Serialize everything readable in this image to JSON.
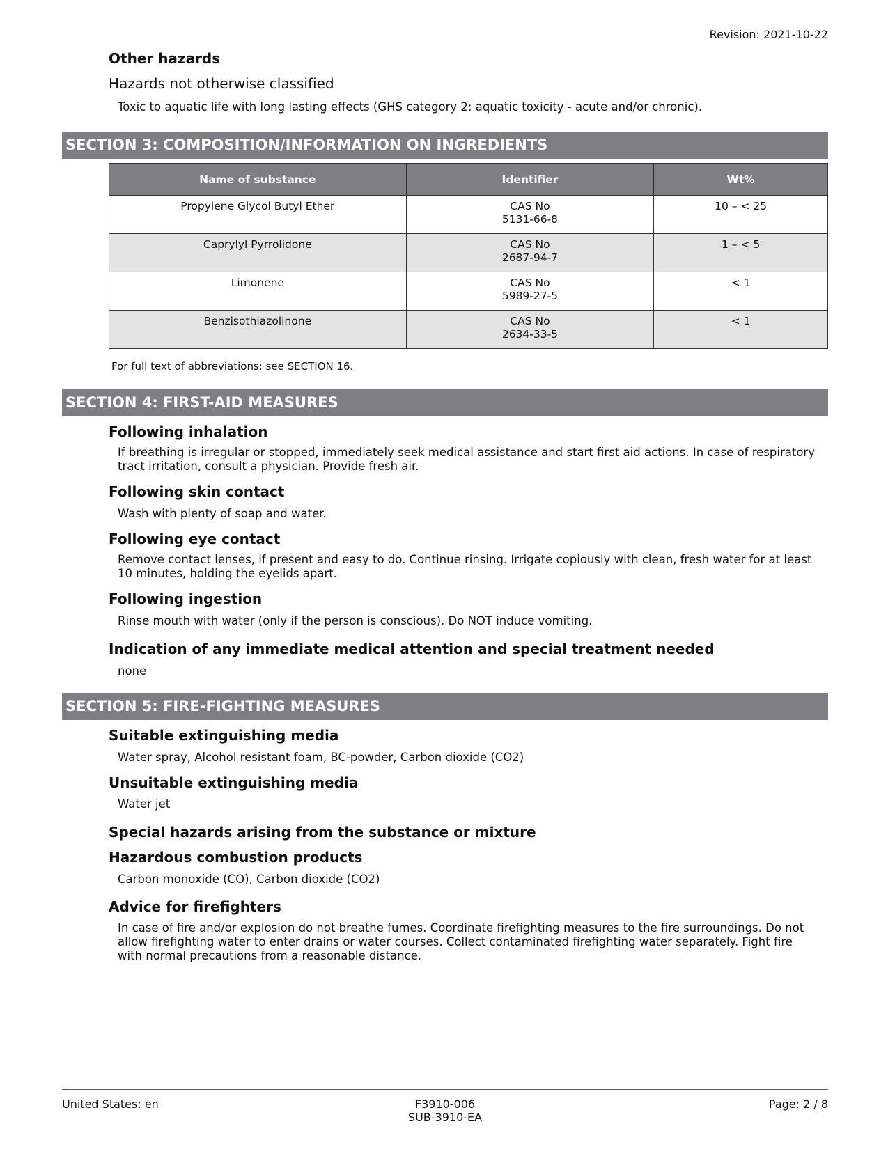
{
  "header": {
    "revision": "Revision: 2021-10-22"
  },
  "other_hazards": {
    "title": "Other hazards",
    "subtitle": "Hazards not otherwise classified",
    "text": "Toxic to aquatic life with long lasting effects (GHS category 2: aquatic toxicity - acute and/or chronic)."
  },
  "section3": {
    "title": "SECTION 3: COMPOSITION/INFORMATION ON INGREDIENTS",
    "columns": [
      "Name of substance",
      "Identifier",
      "Wt%"
    ],
    "rows": [
      {
        "name": "Propylene Glycol Butyl Ether",
        "id_type": "CAS No",
        "id": "5131-66-8",
        "wt": "10 – < 25"
      },
      {
        "name": "Caprylyl Pyrrolidone",
        "id_type": "CAS No",
        "id": "2687-94-7",
        "wt": "1 – < 5"
      },
      {
        "name": "Limonene",
        "id_type": "CAS No",
        "id": "5989-27-5",
        "wt": "< 1"
      },
      {
        "name": "Benzisothiazolinone",
        "id_type": "CAS No",
        "id": "2634-33-5",
        "wt": "< 1"
      }
    ],
    "footnote": "For full text of abbreviations: see SECTION 16."
  },
  "section4": {
    "title": "SECTION 4: FIRST-AID MEASURES",
    "items": [
      {
        "heading": "Following inhalation",
        "lines": [
          "If breathing is irregular or stopped, immediately seek medical assistance and start first aid actions.  In case of respiratory",
          "tract irritation, consult a physician.  Provide fresh air."
        ]
      },
      {
        "heading": "Following skin contact",
        "lines": [
          "Wash with plenty of soap and water."
        ]
      },
      {
        "heading": "Following eye contact",
        "lines": [
          "Remove contact lenses, if present and easy to do. Continue rinsing.  Irrigate copiously with clean, fresh water for at least",
          "10 minutes, holding the eyelids apart."
        ]
      },
      {
        "heading": "Following ingestion",
        "lines": [
          "Rinse mouth with water (only if the person is conscious).  Do NOT induce vomiting."
        ]
      },
      {
        "heading": "Indication of any immediate medical attention and special treatment needed",
        "lines": [
          "none"
        ]
      }
    ]
  },
  "section5": {
    "title": "SECTION 5: FIRE-FIGHTING MEASURES",
    "items": [
      {
        "heading": "Suitable extinguishing media",
        "lines": [
          "Water spray, Alcohol resistant foam, BC-powder, Carbon dioxide (CO2)"
        ]
      },
      {
        "heading": "Unsuitable extinguishing media",
        "lines": [
          "Water jet"
        ]
      },
      {
        "heading": "Special hazards arising from the substance or mixture"
      },
      {
        "heading": "Hazardous combustion products",
        "lines": [
          "Carbon monoxide (CO), Carbon dioxide (CO2)"
        ]
      },
      {
        "heading": "Advice for firefighters",
        "lines": [
          "In case of fire and/or explosion do not breathe fumes.  Coordinate firefighting measures to the fire surroundings.  Do not",
          "allow firefighting water to enter drains or water courses.  Collect contaminated firefighting water separately.  Fight fire",
          "with normal precautions from a reasonable distance."
        ]
      }
    ]
  },
  "footer": {
    "locale": "United States: en",
    "code1": "F3910-006",
    "code2": "SUB-3910-EA",
    "page": "Page: 2 / 8"
  }
}
